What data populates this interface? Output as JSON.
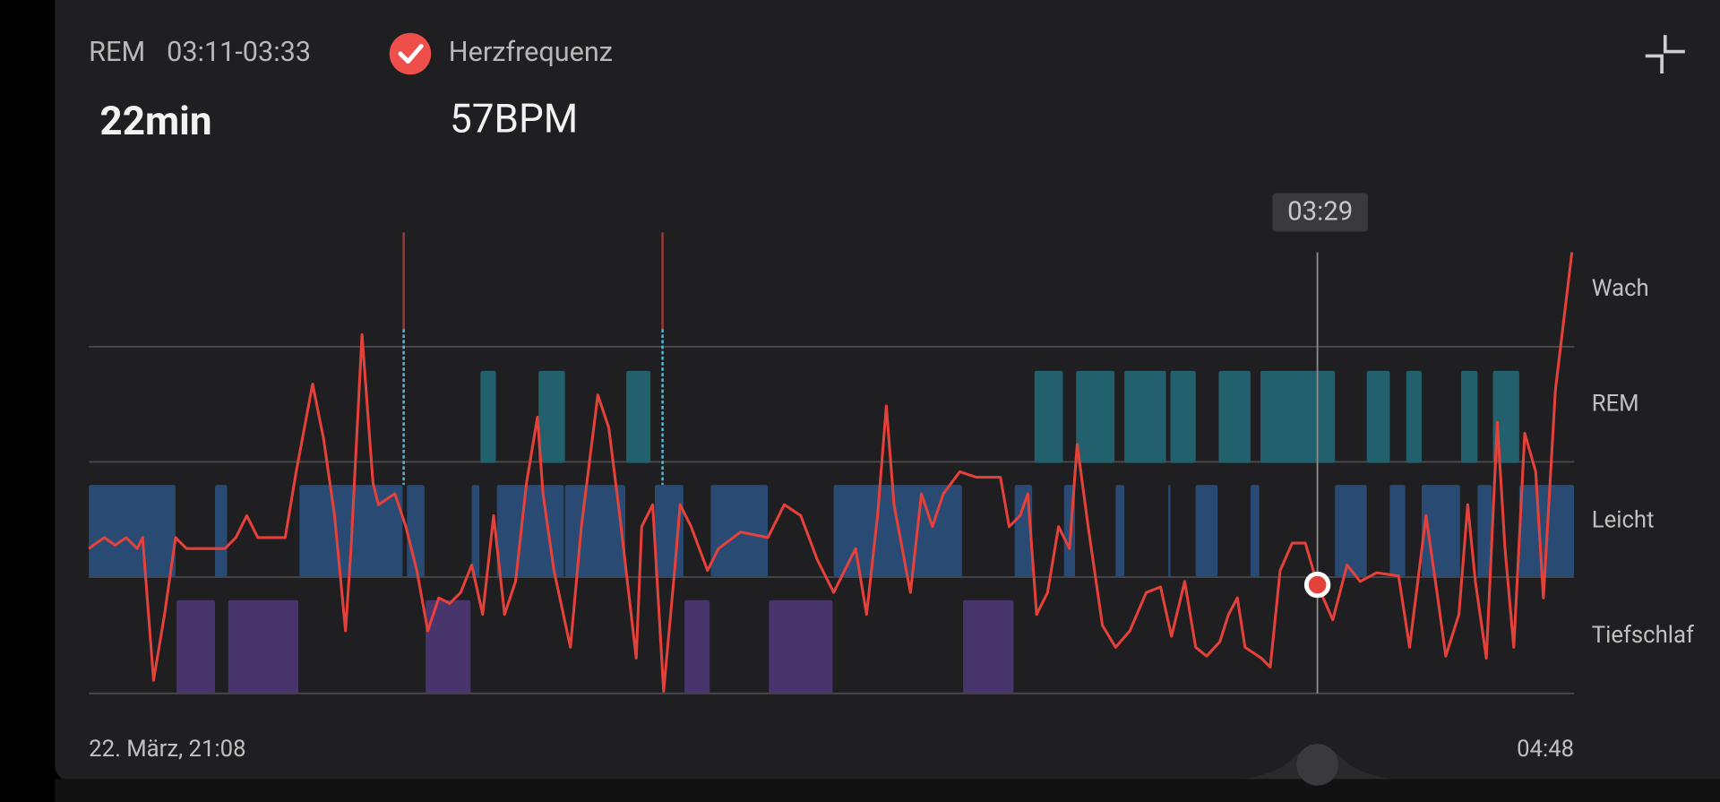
{
  "header": {
    "stage": "REM",
    "time_range": "03:11-03:33",
    "metric": "Herzfrequenz",
    "duration": "22min",
    "metric_value": "57BPM"
  },
  "chart": {
    "cursor_time": "03:29",
    "levels": [
      "Wach",
      "REM",
      "Leicht",
      "Tiefschlaf"
    ],
    "start_label": "22. März, 21:08",
    "end_label": "04:48"
  }
}
